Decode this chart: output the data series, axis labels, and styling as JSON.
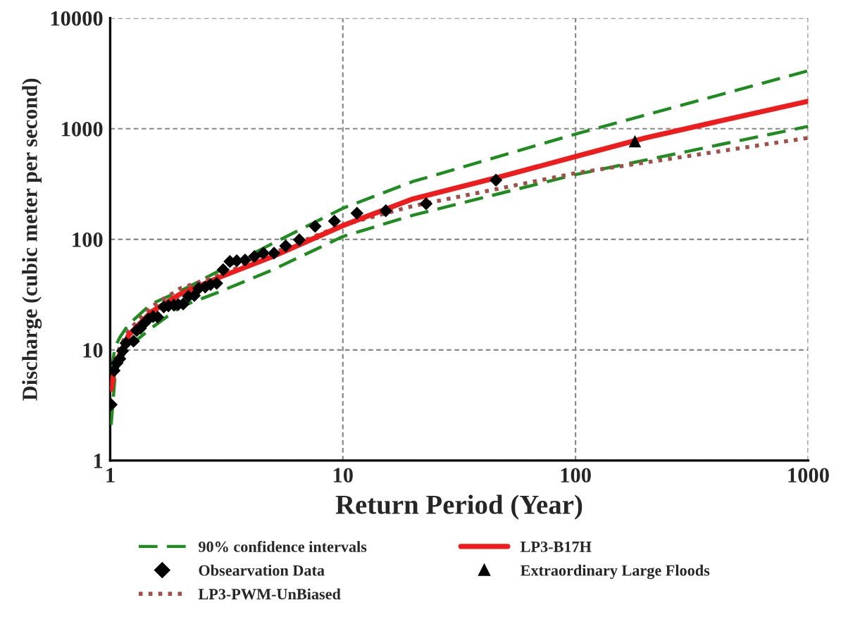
{
  "chart_data": {
    "type": "line",
    "xlabel": "Return Period (Year)",
    "ylabel": "Discharge (cubic meter per second)",
    "log": "xy",
    "xlim": [
      1,
      1000
    ],
    "xticks": [
      1,
      10,
      100,
      1000
    ],
    "ylim": [
      1,
      10000
    ],
    "yticks": [
      1,
      10,
      100,
      1000,
      10000
    ],
    "grid": true,
    "legend": "bottom",
    "series": [
      {
        "name": "90% confidence intervals",
        "line_style": "dashed",
        "marker": "none",
        "color": "#1e8c1e",
        "x": [
          1.01,
          1.05,
          1.1,
          1.2,
          1.5,
          2,
          3,
          5,
          10,
          20,
          100,
          1000
        ],
        "values": [
          6.5,
          10.6,
          13,
          17,
          26,
          34,
          53,
          92,
          191,
          333,
          894,
          3340
        ]
      },
      {
        "line_style": "dashed",
        "marker": "none",
        "color": "#1e8c1e",
        "x": [
          1.01,
          1.05,
          1.1,
          1.2,
          1.5,
          2,
          3,
          5,
          10,
          20,
          100,
          1000
        ],
        "values": [
          2.1,
          5.9,
          7.9,
          10.7,
          15.7,
          24.5,
          34,
          53,
          106,
          165,
          385,
          1050
        ]
      },
      {
        "name": "Obsearvation Data",
        "type": "scatter",
        "marker": "diamond",
        "color": "#000000",
        "x": [
          1.01,
          1.04,
          1.07,
          1.1,
          1.13,
          1.17,
          1.22,
          1.26,
          1.3,
          1.35,
          1.4,
          1.46,
          1.53,
          1.6,
          1.7,
          1.78,
          1.88,
          1.96,
          2.06,
          2.17,
          2.3,
          2.4,
          2.56,
          2.7,
          2.87,
          3.06,
          3.27,
          3.5,
          3.8,
          4.17,
          4.56,
          5.06,
          5.68,
          6.5,
          7.6,
          9.2,
          11.5,
          15.3,
          22.8,
          45.5
        ],
        "values": [
          3.2,
          6.5,
          7.6,
          8.3,
          9.8,
          11.5,
          null,
          12,
          15,
          15.7,
          17.4,
          19,
          20,
          19.8,
          24.5,
          25,
          25.4,
          25.7,
          26,
          30.5,
          31,
          36,
          37,
          39,
          40,
          53,
          63,
          64,
          65,
          70,
          75,
          75,
          87,
          99,
          131,
          146,
          172,
          181,
          210,
          343
        ]
      },
      {
        "name": "LP3-PWM-UnBiased",
        "line_style": "dotted",
        "marker": "none",
        "color": "#a0504b",
        "x": [
          1.01,
          1.05,
          1.1,
          1.2,
          1.5,
          2,
          3,
          5,
          10,
          20,
          100,
          1000
        ],
        "values": [
          4.4,
          8,
          10.6,
          15,
          24.5,
          36,
          48,
          75,
          135,
          200,
          397,
          826
        ]
      },
      {
        "name": "LP3-B17H",
        "line_style": "solid",
        "marker": "none",
        "color": "#ee1c1c",
        "x": [
          1.01,
          1.05,
          1.1,
          1.2,
          1.5,
          2,
          3,
          5,
          10,
          20,
          50,
          100,
          200,
          500,
          1000
        ],
        "values": [
          4.4,
          7.2,
          9.2,
          13.6,
          22,
          32,
          46,
          70,
          133,
          232,
          378,
          560,
          826,
          1280,
          1770
        ]
      },
      {
        "name": "Extraordinary Large Floods",
        "type": "scatter",
        "marker": "triangle",
        "color": "#000000",
        "x": [
          180
        ],
        "values": [
          771
        ]
      }
    ]
  }
}
